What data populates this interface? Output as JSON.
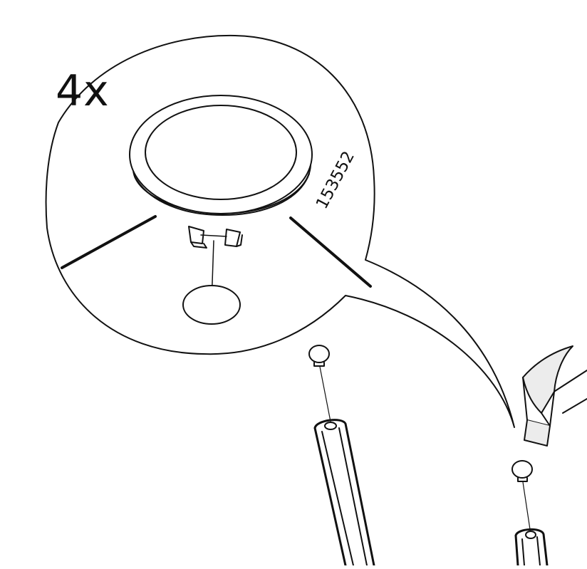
{
  "instruction": {
    "quantity_label": "4x",
    "part_number": "153552"
  },
  "palette": {
    "ink": "#111111",
    "paper": "#ffffff",
    "hammer_fill": "#ececec"
  },
  "icons": {
    "hammer": "hammer-icon",
    "cap": "end-cap-icon"
  }
}
